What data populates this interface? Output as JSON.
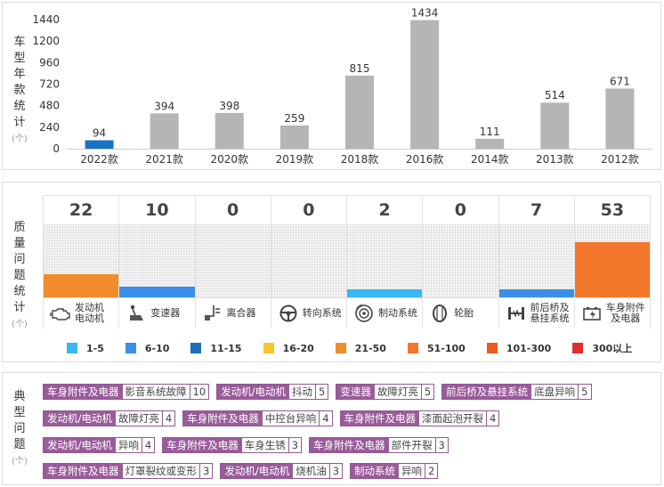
{
  "model_year_panel": {
    "title_chars": [
      "车",
      "型",
      "年",
      "款",
      "统",
      "计"
    ],
    "unit": "(个)"
  },
  "chart_data": {
    "type": "bar",
    "categories": [
      "2022款",
      "2021款",
      "2020款",
      "2019款",
      "2018款",
      "2016款",
      "2014款",
      "2013款",
      "2012款"
    ],
    "values": [
      94,
      394,
      398,
      259,
      815,
      1434,
      111,
      514,
      671
    ],
    "yticks": [
      0,
      240,
      480,
      720,
      960,
      1200,
      1440
    ],
    "ylim": [
      0,
      1440
    ],
    "highlight_category": "2022款",
    "colors": {
      "highlight": "#1a73c2",
      "default": "#b5b5b5"
    },
    "grid": false
  },
  "quality_panel": {
    "title_chars": [
      "质",
      "量",
      "问",
      "题",
      "统",
      "计"
    ],
    "unit": "(个)",
    "items": [
      {
        "count": "22",
        "value": 22,
        "label": "发动机\n电动机",
        "icon": "engine-icon",
        "color": "#f28b2c"
      },
      {
        "count": "10",
        "value": 10,
        "label": "变速器",
        "icon": "gearshift-icon",
        "color": "#3b8fe8"
      },
      {
        "count": "0",
        "value": 0,
        "label": "离合器",
        "icon": "clutch-icon",
        "color": ""
      },
      {
        "count": "0",
        "value": 0,
        "label": "转向系统",
        "icon": "steering-wheel-icon",
        "color": ""
      },
      {
        "count": "2",
        "value": 2,
        "label": "制动系统",
        "icon": "brake-disc-icon",
        "color": "#37b8ee"
      },
      {
        "count": "0",
        "value": 0,
        "label": "轮胎",
        "icon": "tire-icon",
        "color": ""
      },
      {
        "count": "7",
        "value": 7,
        "label": "前后桥及\n悬挂系统",
        "icon": "suspension-icon",
        "color": "#3b8fe8"
      },
      {
        "count": "53",
        "value": 53,
        "label": "车身附件\n及电器",
        "icon": "battery-icon",
        "color": "#f2772a"
      }
    ],
    "legend": [
      {
        "label": "1-5",
        "color": "#37b8ee"
      },
      {
        "label": "6-10",
        "color": "#3b8fe8"
      },
      {
        "label": "11-15",
        "color": "#1a6fb5"
      },
      {
        "label": "16-20",
        "color": "#f7c52a"
      },
      {
        "label": "21-50",
        "color": "#f28b2c"
      },
      {
        "label": "51-100",
        "color": "#f2772a"
      },
      {
        "label": "101-300",
        "color": "#ef5a1e"
      },
      {
        "label": "300以上",
        "color": "#e0302c"
      }
    ]
  },
  "typical_panel": {
    "title_chars": [
      "典",
      "型",
      "问",
      "题"
    ],
    "unit": "(个)",
    "rows": [
      [
        {
          "cat": "车身附件及电器",
          "desc": "影音系统故障",
          "count": "10"
        },
        {
          "cat": "发动机/电动机",
          "desc": "抖动",
          "count": "5"
        },
        {
          "cat": "变速器",
          "desc": "故障灯亮",
          "count": "5"
        },
        {
          "cat": "前后桥及悬挂系统",
          "desc": "底盘异响",
          "count": "5"
        }
      ],
      [
        {
          "cat": "发动机/电动机",
          "desc": "故障灯亮",
          "count": "4"
        },
        {
          "cat": "车身附件及电器",
          "desc": "中控台异响",
          "count": "4"
        },
        {
          "cat": "车身附件及电器",
          "desc": "漆面起泡开裂",
          "count": "4"
        }
      ],
      [
        {
          "cat": "发动机/电动机",
          "desc": "异响",
          "count": "4"
        },
        {
          "cat": "车身附件及电器",
          "desc": "车身生锈",
          "count": "3"
        },
        {
          "cat": "车身附件及电器",
          "desc": "部件开裂",
          "count": "3"
        }
      ],
      [
        {
          "cat": "车身附件及电器",
          "desc": "灯罩裂纹或变形",
          "count": "3"
        },
        {
          "cat": "发动机/电动机",
          "desc": "烧机油",
          "count": "3"
        },
        {
          "cat": "制动系统",
          "desc": "异响",
          "count": "2"
        }
      ]
    ]
  }
}
